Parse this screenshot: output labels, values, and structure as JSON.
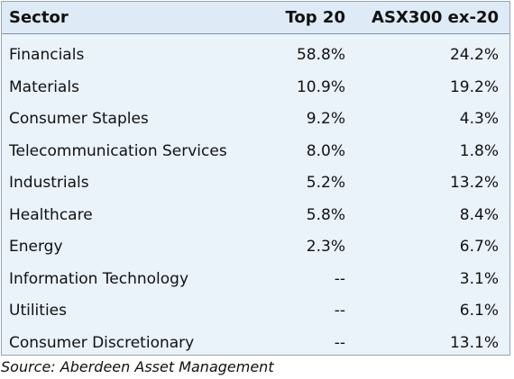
{
  "chart_data": {
    "type": "table",
    "columns": [
      "Sector",
      "Top 20",
      "ASX300 ex-20"
    ],
    "rows": [
      {
        "sector": "Financials",
        "top20": "58.8%",
        "asx300": "24.2%"
      },
      {
        "sector": "Materials",
        "top20": "10.9%",
        "asx300": "19.2%"
      },
      {
        "sector": "Consumer Staples",
        "top20": "9.2%",
        "asx300": "4.3%"
      },
      {
        "sector": "Telecommunication Services",
        "top20": "8.0%",
        "asx300": "1.8%"
      },
      {
        "sector": "Industrials",
        "top20": "5.2%",
        "asx300": "13.2%"
      },
      {
        "sector": "Healthcare",
        "top20": "5.8%",
        "asx300": "8.4%"
      },
      {
        "sector": "Energy",
        "top20": "2.3%",
        "asx300": "6.7%"
      },
      {
        "sector": "Information Technology",
        "top20": "--",
        "asx300": "3.1%"
      },
      {
        "sector": "Utilities",
        "top20": "--",
        "asx300": "6.1%"
      },
      {
        "sector": "Consumer Discretionary",
        "top20": "--",
        "asx300": "13.1%"
      }
    ],
    "source": "Source: Aberdeen Asset Management"
  },
  "colors": {
    "header_background": "#deeaf5",
    "body_background": "#eaf2fa",
    "border": "#9aa3ad",
    "text": "#111111"
  }
}
